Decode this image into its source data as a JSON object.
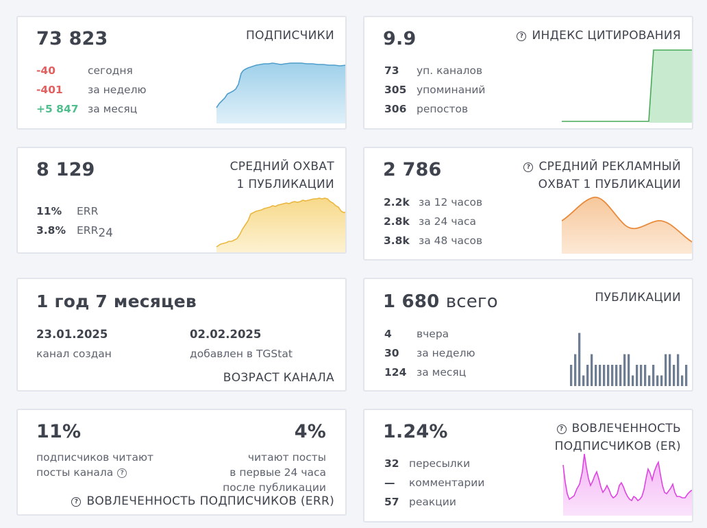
{
  "subscribers": {
    "value": "73 823",
    "title": "ПОДПИСЧИКИ",
    "rows": [
      {
        "value": "-40",
        "label": "сегодня",
        "tone": "neg"
      },
      {
        "value": "-401",
        "label": "за неделю",
        "tone": "neg"
      },
      {
        "value": "+5 847",
        "label": "за месяц",
        "tone": "pos"
      }
    ],
    "chart_color": "#5aa7d4"
  },
  "citation": {
    "value": "9.9",
    "title": "ИНДЕКС ЦИТИРОВАНИЯ",
    "icon": "question-circle-icon",
    "rows": [
      {
        "value": "73",
        "label": "уп. каналов"
      },
      {
        "value": "305",
        "label": "упоминаний"
      },
      {
        "value": "306",
        "label": "репостов"
      }
    ],
    "chart_color": "#4cb35e"
  },
  "reach": {
    "value": "8 129",
    "title_line1": "СРЕДНИЙ ОХВАТ",
    "title_line2": "1 ПУБЛИКАЦИИ",
    "rows": [
      {
        "value": "11%",
        "label": "ERR"
      },
      {
        "value": "3.8%",
        "label": "ERR",
        "sub": "24"
      }
    ],
    "chart_color": "#f2c15a"
  },
  "ad_reach": {
    "value": "2 786",
    "title_line1": "СРЕДНИЙ РЕКЛАМНЫЙ",
    "title_line2": "ОХВАТ 1 ПУБЛИКАЦИИ",
    "icon": "question-circle-icon",
    "rows": [
      {
        "value": "2.2k",
        "label": "за 12 часов"
      },
      {
        "value": "2.8k",
        "label": "за 24 часа"
      },
      {
        "value": "3.8k",
        "label": "за 48 часов"
      }
    ],
    "chart_color": "#ee9448"
  },
  "age": {
    "value": "1 год 7 месяцев",
    "created_date": "23.01.2025",
    "created_label": "канал создан",
    "added_date": "02.02.2025",
    "added_label": "добавлен в TGStat",
    "title": "ВОЗРАСТ КАНАЛА"
  },
  "posts": {
    "value": "1 680",
    "value_suffix": "всего",
    "title": "ПУБЛИКАЦИИ",
    "rows": [
      {
        "value": "4",
        "label": "вчера"
      },
      {
        "value": "30",
        "label": "за неделю"
      },
      {
        "value": "124",
        "label": "за месяц"
      }
    ],
    "chart_color": "#6e7d91",
    "bars": [
      2,
      3,
      5,
      1,
      2,
      3,
      2,
      2,
      2,
      2,
      2,
      2,
      2,
      3,
      3,
      1,
      2,
      2,
      2,
      1,
      2,
      1,
      1,
      3,
      3,
      2,
      3,
      1,
      2
    ]
  },
  "err": {
    "left_value": "11%",
    "left_line1": "подписчиков читают",
    "left_line2": "посты канала",
    "right_value": "4%",
    "right_line1": "читают посты",
    "right_line2": "в первые 24 часа",
    "right_line3": "после публикации",
    "title": "ВОВЛЕЧЕННОСТЬ ПОДПИСЧИКОВ (ERR)",
    "icon": "question-circle-icon"
  },
  "er": {
    "value": "1.24%",
    "title_line1": "ВОВЛЕЧЕННОСТЬ",
    "title_line2": "ПОДПИСЧИКОВ (ER)",
    "icon": "question-circle-icon",
    "rows": [
      {
        "value": "32",
        "label": "пересылки"
      },
      {
        "value": "—",
        "label": "комментарии"
      },
      {
        "value": "57",
        "label": "реакции"
      }
    ],
    "chart_color": "#de4fe3"
  }
}
